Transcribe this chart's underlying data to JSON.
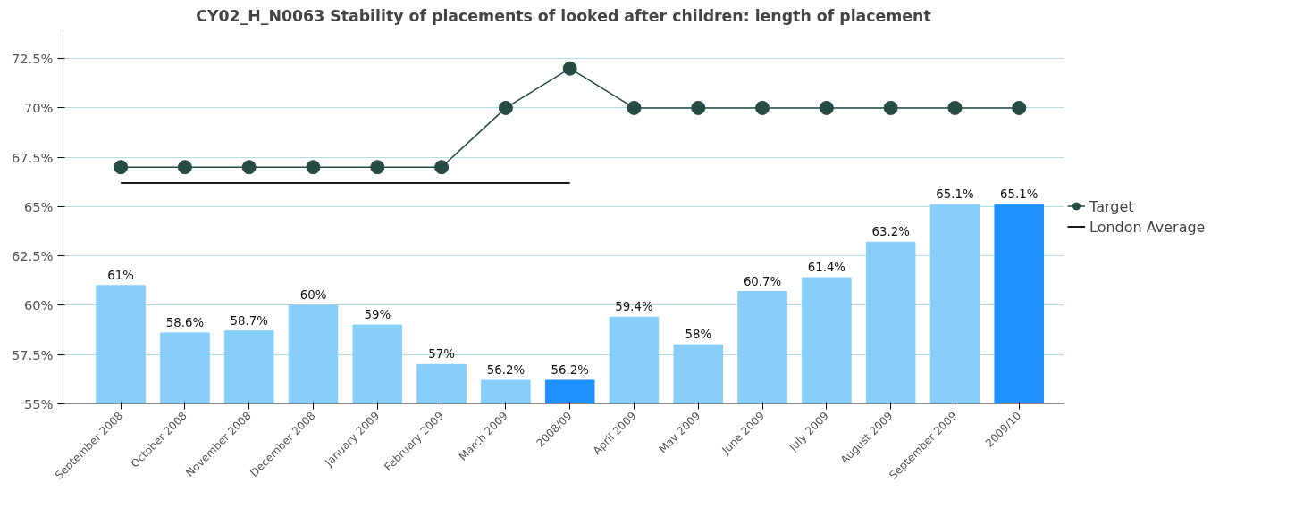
{
  "chart_data": {
    "type": "bar",
    "title": "CY02_H_N0063 Stability of placements of looked after children: length of placement",
    "categories": [
      "September 2008",
      "October 2008",
      "November 2008",
      "December 2008",
      "January 2009",
      "February 2009",
      "March 2009",
      "2008/09",
      "April 2009",
      "May 2009",
      "June 2009",
      "July 2009",
      "August 2009",
      "September 2009",
      "2009/10"
    ],
    "series": [
      {
        "colors": [
          "#87cefa",
          "#87cefa",
          "#87cefa",
          "#87cefa",
          "#87cefa",
          "#87cefa",
          "#87cefa",
          "#1e90ff",
          "#87cefa",
          "#87cefa",
          "#87cefa",
          "#87cefa",
          "#87cefa",
          "#87cefa",
          "#1e90ff"
        ],
        "values": [
          61,
          58.6,
          58.7,
          60,
          59,
          57,
          56.2,
          56.2,
          59.4,
          58,
          60.7,
          61.4,
          63.2,
          65.1,
          65.1
        ],
        "value_labels": [
          "61%",
          "58.6%",
          "58.7%",
          "60%",
          "59%",
          "57%",
          "56.2%",
          "56.2%",
          "59.4%",
          "58%",
          "60.7%",
          "61.4%",
          "63.2%",
          "65.1%",
          "65.1%"
        ]
      },
      {
        "type": "line",
        "name": "Target",
        "color": "#264b45",
        "marker": "circle",
        "values": [
          67,
          67,
          67,
          67,
          67,
          67,
          70,
          72,
          70,
          70,
          70,
          70,
          70,
          70,
          70
        ]
      },
      {
        "type": "line",
        "name": "London Average",
        "color": "#1a1a1a",
        "marker": "none",
        "values": [
          66.2,
          66.2,
          66.2,
          66.2,
          66.2,
          66.2,
          66.2,
          66.2,
          null,
          null,
          null,
          null,
          null,
          null,
          null
        ]
      }
    ],
    "ylim": [
      55,
      74
    ],
    "yticks": [
      {
        "value": 55,
        "label": "55%"
      },
      {
        "value": 57.5,
        "label": "57.5%"
      },
      {
        "value": 60,
        "label": "60%"
      },
      {
        "value": 62.5,
        "label": "62.5%"
      },
      {
        "value": 65,
        "label": "65%"
      },
      {
        "value": 67.5,
        "label": "67.5%"
      },
      {
        "value": 70,
        "label": "70%"
      },
      {
        "value": 72.5,
        "label": "72.5%"
      }
    ],
    "grid": "y",
    "legend": "right"
  }
}
